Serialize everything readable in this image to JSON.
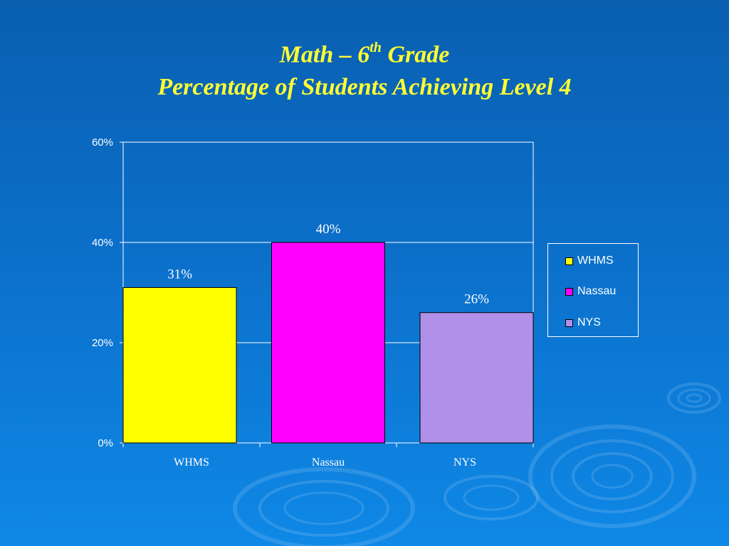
{
  "title": {
    "line1_pre": "Math – 6",
    "line1_sup": "th",
    "line1_post": " Grade",
    "line2": "Percentage of Students Achieving Level 4"
  },
  "chart_data": {
    "type": "bar",
    "categories": [
      "WHMS",
      "Nassau",
      "NYS"
    ],
    "values": [
      31,
      40,
      26
    ],
    "data_labels": [
      "31%",
      "40%",
      "26%"
    ],
    "colors": [
      "#ffff00",
      "#ff00ff",
      "#b090e8"
    ],
    "ylim": [
      0,
      60
    ],
    "yticks": [
      0,
      20,
      40,
      60
    ],
    "ytick_labels": [
      "0%",
      "20%",
      "40%",
      "60%"
    ],
    "grid": true,
    "legend": {
      "placement": "right",
      "entries": [
        "WHMS",
        "Nassau",
        "NYS"
      ]
    }
  }
}
